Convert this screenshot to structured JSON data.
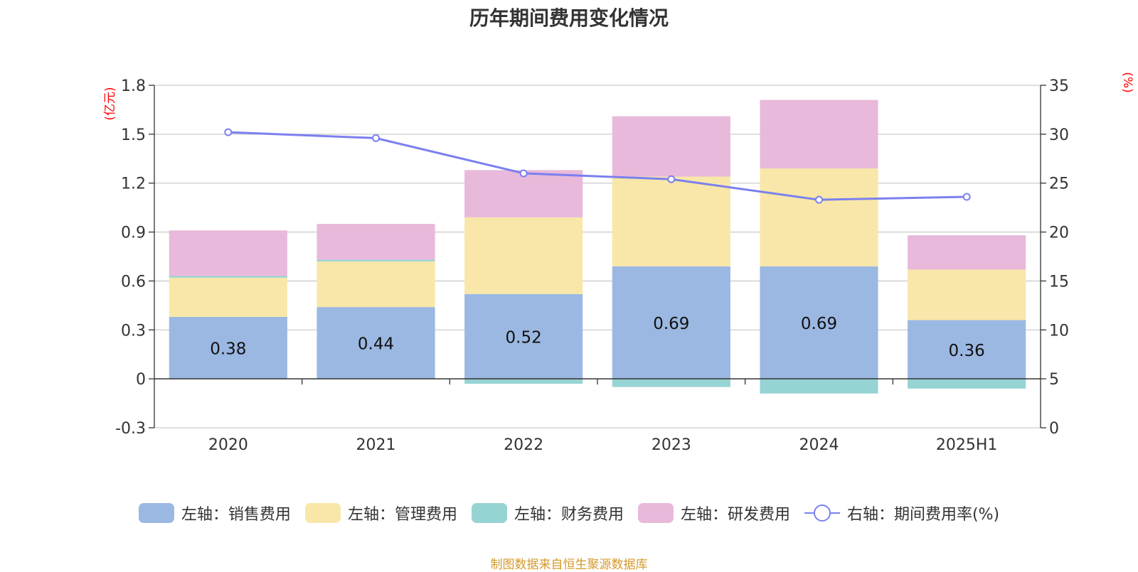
{
  "colors": {
    "sales": "#9bb8e2",
    "admin": "#f8e7a8",
    "finance": "#96d4d3",
    "rd": "#e8b9da",
    "rate": "#7b80ef",
    "grid": "#cccccc",
    "axis": "#333333",
    "unit": "#ff0000",
    "source": "#d49a2a"
  },
  "chart_data": {
    "type": "bar",
    "stacked": true,
    "title": "历年期间费用变化情况",
    "categories": [
      "2020",
      "2021",
      "2022",
      "2023",
      "2024",
      "2025H1"
    ],
    "left_axis": {
      "unit": "(亿元)",
      "ylim": [
        -0.3,
        1.8
      ],
      "ticks": [
        -0.3,
        0,
        0.3,
        0.6,
        0.9,
        1.2,
        1.5,
        1.8
      ],
      "tick_labels": [
        "-0.3",
        "0",
        "0.3",
        "0.6",
        "0.9",
        "1.2",
        "1.5",
        "1.8"
      ]
    },
    "right_axis": {
      "unit": "(%)",
      "ylim": [
        0,
        35
      ],
      "ticks": [
        0,
        5,
        10,
        15,
        20,
        25,
        30,
        35
      ],
      "tick_labels": [
        "0",
        "5",
        "10",
        "15",
        "20",
        "25",
        "30",
        "35"
      ]
    },
    "series": [
      {
        "name": "左轴：销售费用",
        "key": "sales",
        "axis": "left",
        "values": [
          0.38,
          0.44,
          0.52,
          0.69,
          0.69,
          0.36
        ],
        "data_labels": [
          "0.38",
          "0.44",
          "0.52",
          "0.69",
          "0.69",
          "0.36"
        ]
      },
      {
        "name": "左轴：管理费用",
        "key": "admin",
        "axis": "left",
        "values": [
          0.24,
          0.28,
          0.47,
          0.55,
          0.6,
          0.31
        ]
      },
      {
        "name": "左轴：财务费用",
        "key": "finance",
        "axis": "left",
        "values": [
          0.01,
          0.01,
          -0.03,
          -0.05,
          -0.09,
          -0.06
        ]
      },
      {
        "name": "左轴：研发费用",
        "key": "rd",
        "axis": "left",
        "values": [
          0.28,
          0.22,
          0.29,
          0.37,
          0.42,
          0.21
        ]
      },
      {
        "name": "右轴：期间费用率(%)",
        "key": "rate",
        "axis": "right",
        "type": "line",
        "values": [
          30.2,
          29.6,
          26.0,
          25.4,
          23.3,
          23.6
        ]
      }
    ],
    "grid": true,
    "legend_position": "bottom"
  },
  "source": "制图数据来自恒生聚源数据库"
}
